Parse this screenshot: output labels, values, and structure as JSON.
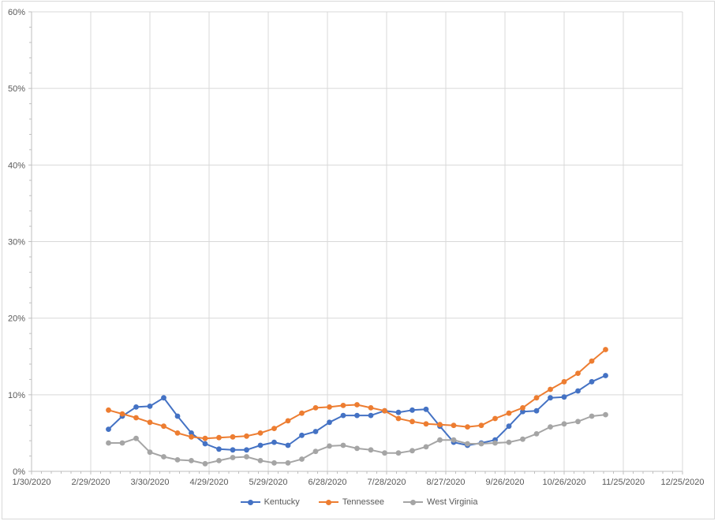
{
  "chart_data": {
    "type": "line",
    "title": "",
    "x": [
      "3/9/2020",
      "3/16/2020",
      "3/23/2020",
      "3/30/2020",
      "4/6/2020",
      "4/13/2020",
      "4/20/2020",
      "4/27/2020",
      "5/4/2020",
      "5/11/2020",
      "5/18/2020",
      "5/25/2020",
      "6/1/2020",
      "6/8/2020",
      "6/15/2020",
      "6/22/2020",
      "6/29/2020",
      "7/6/2020",
      "7/13/2020",
      "7/20/2020",
      "7/27/2020",
      "8/3/2020",
      "8/10/2020",
      "8/17/2020",
      "8/24/2020",
      "8/31/2020",
      "9/7/2020",
      "9/14/2020",
      "9/21/2020",
      "9/28/2020",
      "10/5/2020",
      "10/12/2020",
      "10/19/2020",
      "10/26/2020",
      "11/2/2020",
      "11/9/2020",
      "11/16/2020"
    ],
    "series": [
      {
        "name": "Kentucky",
        "color": "#4472C4",
        "values": [
          5.5,
          7.2,
          8.4,
          8.5,
          9.6,
          7.2,
          5.0,
          3.6,
          2.9,
          2.8,
          2.8,
          3.4,
          3.8,
          3.4,
          4.7,
          5.2,
          6.4,
          7.3,
          7.3,
          7.3,
          7.9,
          7.7,
          8.0,
          8.1,
          5.9,
          3.8,
          3.4,
          3.7,
          4.1,
          5.9,
          7.8,
          7.9,
          9.6,
          9.7,
          10.5,
          11.7,
          12.5
        ]
      },
      {
        "name": "Tennessee",
        "color": "#ED7D31",
        "values": [
          8.0,
          7.5,
          7.0,
          6.4,
          5.9,
          5.0,
          4.5,
          4.3,
          4.4,
          4.5,
          4.6,
          5.0,
          5.6,
          6.6,
          7.6,
          8.3,
          8.4,
          8.6,
          8.7,
          8.3,
          7.9,
          6.9,
          6.5,
          6.2,
          6.1,
          6.0,
          5.8,
          6.0,
          6.9,
          7.6,
          8.3,
          9.6,
          10.7,
          11.7,
          12.8,
          14.4,
          15.9
        ]
      },
      {
        "name": "West Virginia",
        "color": "#A5A5A5",
        "values": [
          3.7,
          3.7,
          4.3,
          2.5,
          1.9,
          1.5,
          1.4,
          1.0,
          1.4,
          1.8,
          1.9,
          1.4,
          1.1,
          1.1,
          1.6,
          2.6,
          3.3,
          3.4,
          3.0,
          2.8,
          2.4,
          2.4,
          2.7,
          3.2,
          4.1,
          4.1,
          3.6,
          3.6,
          3.7,
          3.8,
          4.2,
          4.9,
          5.8,
          6.2,
          6.5,
          7.2,
          7.4
        ]
      }
    ],
    "x_axis": {
      "min": "1/30/2020",
      "max": "12/25/2020",
      "tick_labels": [
        "1/30/2020",
        "2/29/2020",
        "3/30/2020",
        "4/29/2020",
        "5/29/2020",
        "6/28/2020",
        "7/28/2020",
        "8/27/2020",
        "9/26/2020",
        "10/26/2020",
        "11/25/2020",
        "12/25/2020"
      ],
      "major_unit_days": 30,
      "minor_unit_days": 5
    },
    "y_axis": {
      "min": 0,
      "max": 60,
      "major_unit": 10,
      "minor_unit": 2,
      "tick_labels": [
        "0%",
        "10%",
        "20%",
        "30%",
        "40%",
        "50%",
        "60%"
      ]
    },
    "legend": {
      "position": "bottom"
    },
    "grid": true
  },
  "styles": {
    "grid_color": "#D9D9D9",
    "axis_color": "#BFBFBF",
    "label_color": "#595959",
    "border_color": "#D9D9D9",
    "background": "#FFFFFF"
  }
}
